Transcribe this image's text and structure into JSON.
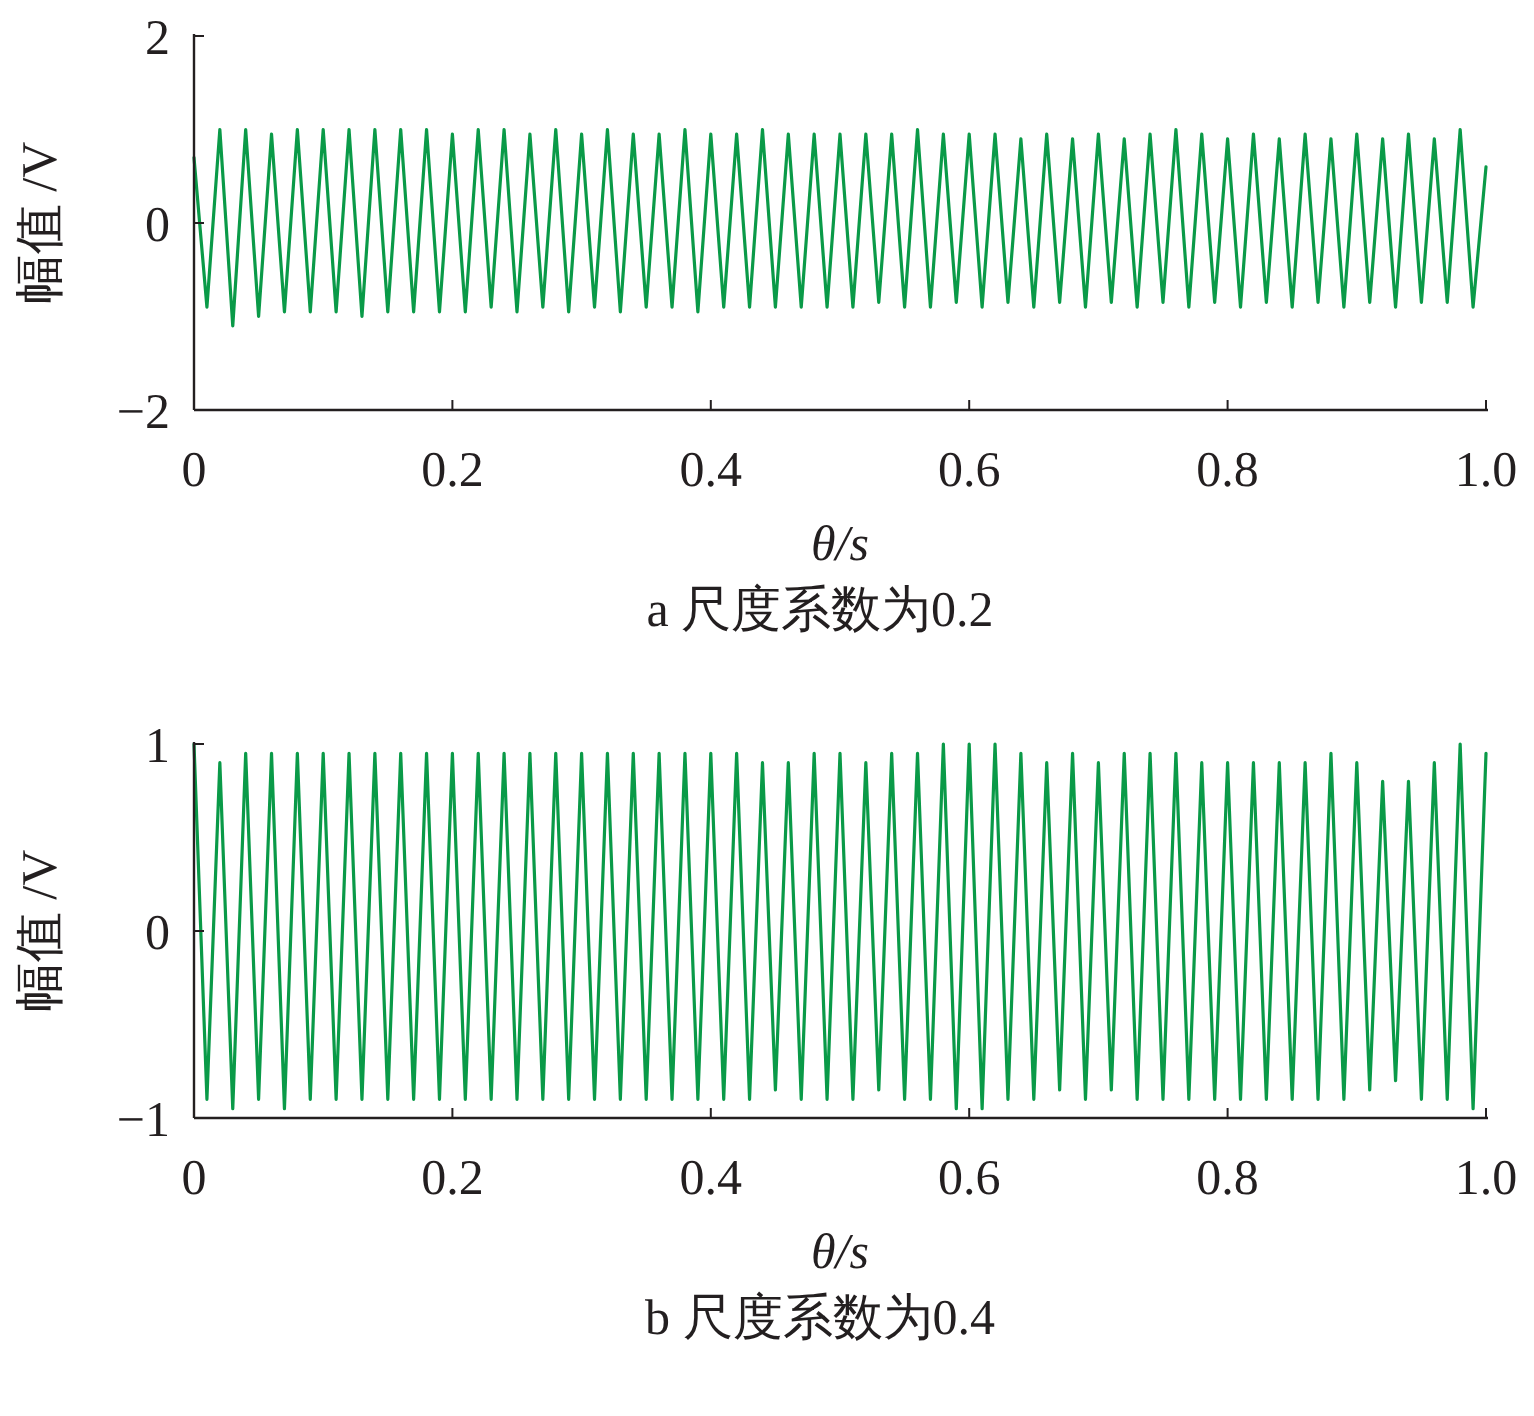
{
  "chart_data": [
    {
      "type": "line",
      "title": "a 尺度系数为0.2",
      "xlabel": "θ/s",
      "ylabel": "幅值 /V",
      "xlim": [
        0,
        1
      ],
      "ylim": [
        -2,
        2
      ],
      "xticks": [
        0,
        0.2,
        0.4,
        0.6,
        0.8,
        {
          "value": 1,
          "label": "1.0"
        }
      ],
      "yticks": [
        {
          "value": -2,
          "label": "−2"
        },
        0,
        2
      ],
      "series": [
        {
          "color": "#0a9a48",
          "x": [
            0,
            0.01,
            0.02,
            0.03,
            0.04,
            0.05,
            0.06,
            0.07,
            0.08,
            0.09,
            0.1,
            0.11,
            0.12,
            0.13,
            0.14,
            0.15,
            0.16,
            0.17,
            0.18,
            0.19,
            0.2,
            0.21,
            0.22,
            0.23,
            0.24,
            0.25,
            0.26,
            0.27,
            0.28,
            0.29,
            0.3,
            0.31,
            0.32,
            0.33,
            0.34,
            0.35,
            0.36,
            0.37,
            0.38,
            0.39,
            0.4,
            0.41,
            0.42,
            0.43,
            0.44,
            0.45,
            0.46,
            0.47,
            0.48,
            0.49,
            0.5,
            0.51,
            0.52,
            0.53,
            0.54,
            0.55,
            0.56,
            0.57,
            0.58,
            0.59,
            0.6,
            0.61,
            0.62,
            0.63,
            0.64,
            0.65,
            0.66,
            0.67,
            0.68,
            0.69,
            0.7,
            0.71,
            0.72,
            0.73,
            0.74,
            0.75,
            0.76,
            0.77,
            0.78,
            0.79,
            0.8,
            0.81,
            0.82,
            0.83,
            0.84,
            0.85,
            0.86,
            0.87,
            0.88,
            0.89,
            0.9,
            0.91,
            0.92,
            0.93,
            0.94,
            0.95,
            0.96,
            0.97,
            0.98,
            0.99,
            1
          ],
          "values": [
            0.7,
            -0.9,
            1.0,
            -1.1,
            1.0,
            -1.0,
            0.95,
            -0.95,
            1.0,
            -0.95,
            1.0,
            -0.95,
            1.0,
            -1.0,
            1.0,
            -0.95,
            1.0,
            -0.95,
            1.0,
            -0.95,
            0.95,
            -0.95,
            1.0,
            -0.9,
            1.0,
            -0.95,
            0.95,
            -0.9,
            1.0,
            -0.95,
            0.95,
            -0.9,
            1.0,
            -0.95,
            0.95,
            -0.9,
            0.95,
            -0.9,
            1.0,
            -0.95,
            0.95,
            -0.9,
            0.95,
            -0.9,
            1.0,
            -0.9,
            0.95,
            -0.9,
            0.95,
            -0.9,
            0.95,
            -0.9,
            0.95,
            -0.85,
            0.95,
            -0.9,
            1.0,
            -0.9,
            0.95,
            -0.85,
            0.95,
            -0.9,
            0.95,
            -0.85,
            0.9,
            -0.9,
            0.95,
            -0.85,
            0.9,
            -0.9,
            0.95,
            -0.85,
            0.9,
            -0.9,
            0.95,
            -0.85,
            1.0,
            -0.9,
            0.95,
            -0.85,
            0.9,
            -0.9,
            0.95,
            -0.85,
            0.9,
            -0.9,
            0.95,
            -0.85,
            0.9,
            -0.9,
            0.95,
            -0.85,
            0.9,
            -0.9,
            0.95,
            -0.85,
            0.9,
            -0.85,
            1.0,
            -0.9,
            0.6
          ]
        }
      ]
    },
    {
      "type": "line",
      "title": "b 尺度系数为0.4",
      "xlabel": "θ/s",
      "ylabel": "幅值 /V",
      "xlim": [
        0,
        1
      ],
      "ylim": [
        -1,
        1
      ],
      "xticks": [
        0,
        0.2,
        0.4,
        0.6,
        0.8,
        {
          "value": 1,
          "label": "1.0"
        }
      ],
      "yticks": [
        {
          "value": -1,
          "label": "−1"
        },
        0,
        1
      ],
      "series": [
        {
          "color": "#0a9a48",
          "x": [
            0,
            0.01,
            0.02,
            0.03,
            0.04,
            0.05,
            0.06,
            0.07,
            0.08,
            0.09,
            0.1,
            0.11,
            0.12,
            0.13,
            0.14,
            0.15,
            0.16,
            0.17,
            0.18,
            0.19,
            0.2,
            0.21,
            0.22,
            0.23,
            0.24,
            0.25,
            0.26,
            0.27,
            0.28,
            0.29,
            0.3,
            0.31,
            0.32,
            0.33,
            0.34,
            0.35,
            0.36,
            0.37,
            0.38,
            0.39,
            0.4,
            0.41,
            0.42,
            0.43,
            0.44,
            0.45,
            0.46,
            0.47,
            0.48,
            0.49,
            0.5,
            0.51,
            0.52,
            0.53,
            0.54,
            0.55,
            0.56,
            0.57,
            0.58,
            0.59,
            0.6,
            0.61,
            0.62,
            0.63,
            0.64,
            0.65,
            0.66,
            0.67,
            0.68,
            0.69,
            0.7,
            0.71,
            0.72,
            0.73,
            0.74,
            0.75,
            0.76,
            0.77,
            0.78,
            0.79,
            0.8,
            0.81,
            0.82,
            0.83,
            0.84,
            0.85,
            0.86,
            0.87,
            0.88,
            0.89,
            0.9,
            0.91,
            0.92,
            0.93,
            0.94,
            0.95,
            0.96,
            0.97,
            0.98,
            0.99,
            1
          ],
          "values": [
            1.0,
            -0.9,
            0.9,
            -0.95,
            0.95,
            -0.9,
            0.95,
            -0.95,
            0.95,
            -0.9,
            0.95,
            -0.9,
            0.95,
            -0.9,
            0.95,
            -0.9,
            0.95,
            -0.9,
            0.95,
            -0.9,
            0.95,
            -0.9,
            0.95,
            -0.9,
            0.95,
            -0.9,
            0.95,
            -0.9,
            0.95,
            -0.9,
            0.95,
            -0.9,
            0.95,
            -0.9,
            0.95,
            -0.9,
            0.95,
            -0.9,
            0.95,
            -0.9,
            0.95,
            -0.9,
            0.95,
            -0.9,
            0.9,
            -0.85,
            0.9,
            -0.9,
            0.95,
            -0.9,
            0.95,
            -0.9,
            0.9,
            -0.85,
            0.95,
            -0.9,
            0.95,
            -0.9,
            1.0,
            -0.95,
            1.0,
            -0.95,
            1.0,
            -0.9,
            0.95,
            -0.9,
            0.9,
            -0.85,
            0.95,
            -0.9,
            0.9,
            -0.85,
            0.95,
            -0.9,
            0.95,
            -0.9,
            0.95,
            -0.9,
            0.9,
            -0.9,
            0.9,
            -0.9,
            0.9,
            -0.9,
            0.9,
            -0.9,
            0.9,
            -0.9,
            0.95,
            -0.9,
            0.9,
            -0.85,
            0.8,
            -0.8,
            0.8,
            -0.9,
            0.9,
            -0.9,
            1.0,
            -0.95,
            0.95
          ]
        }
      ]
    }
  ]
}
